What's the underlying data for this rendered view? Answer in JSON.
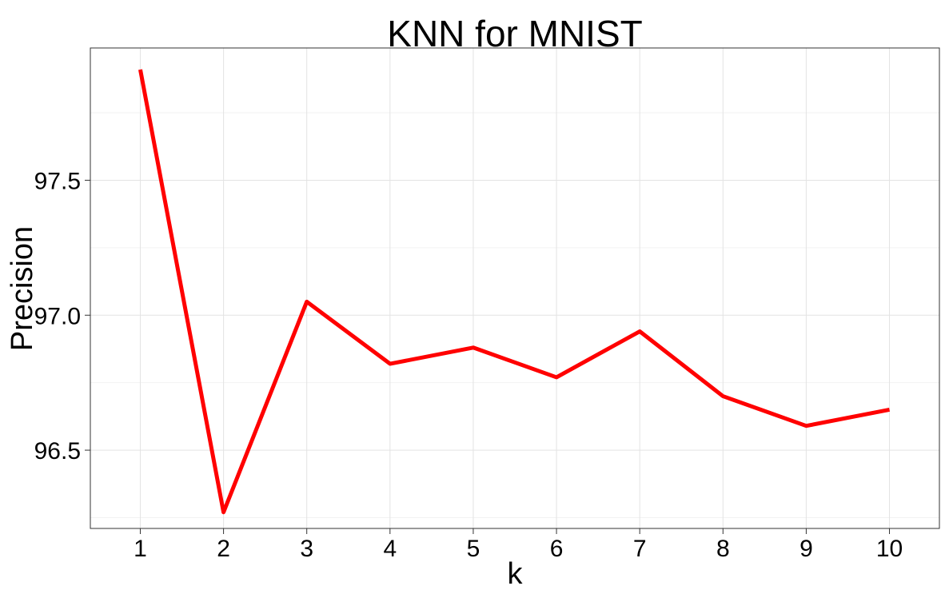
{
  "chart_data": {
    "type": "line",
    "title": "KNN for MNIST",
    "xlabel": "k",
    "ylabel": "Precision",
    "x": [
      1,
      2,
      3,
      4,
      5,
      6,
      7,
      8,
      9,
      10
    ],
    "series": [
      {
        "values": [
          97.91,
          96.27,
          97.05,
          96.82,
          96.88,
          96.77,
          96.94,
          96.7,
          96.59,
          96.65
        ],
        "color": "#ff0000"
      }
    ],
    "xticks": [
      "1",
      "2",
      "3",
      "4",
      "5",
      "6",
      "7",
      "8",
      "9",
      "10"
    ],
    "yticks": [
      "96.5",
      "97.0",
      "97.5"
    ],
    "yticks_values": [
      96.5,
      97.0,
      97.5
    ],
    "xlim": [
      0.4,
      10.6
    ],
    "ylim": [
      96.21,
      97.99
    ],
    "grid": true,
    "panel_border": true
  }
}
